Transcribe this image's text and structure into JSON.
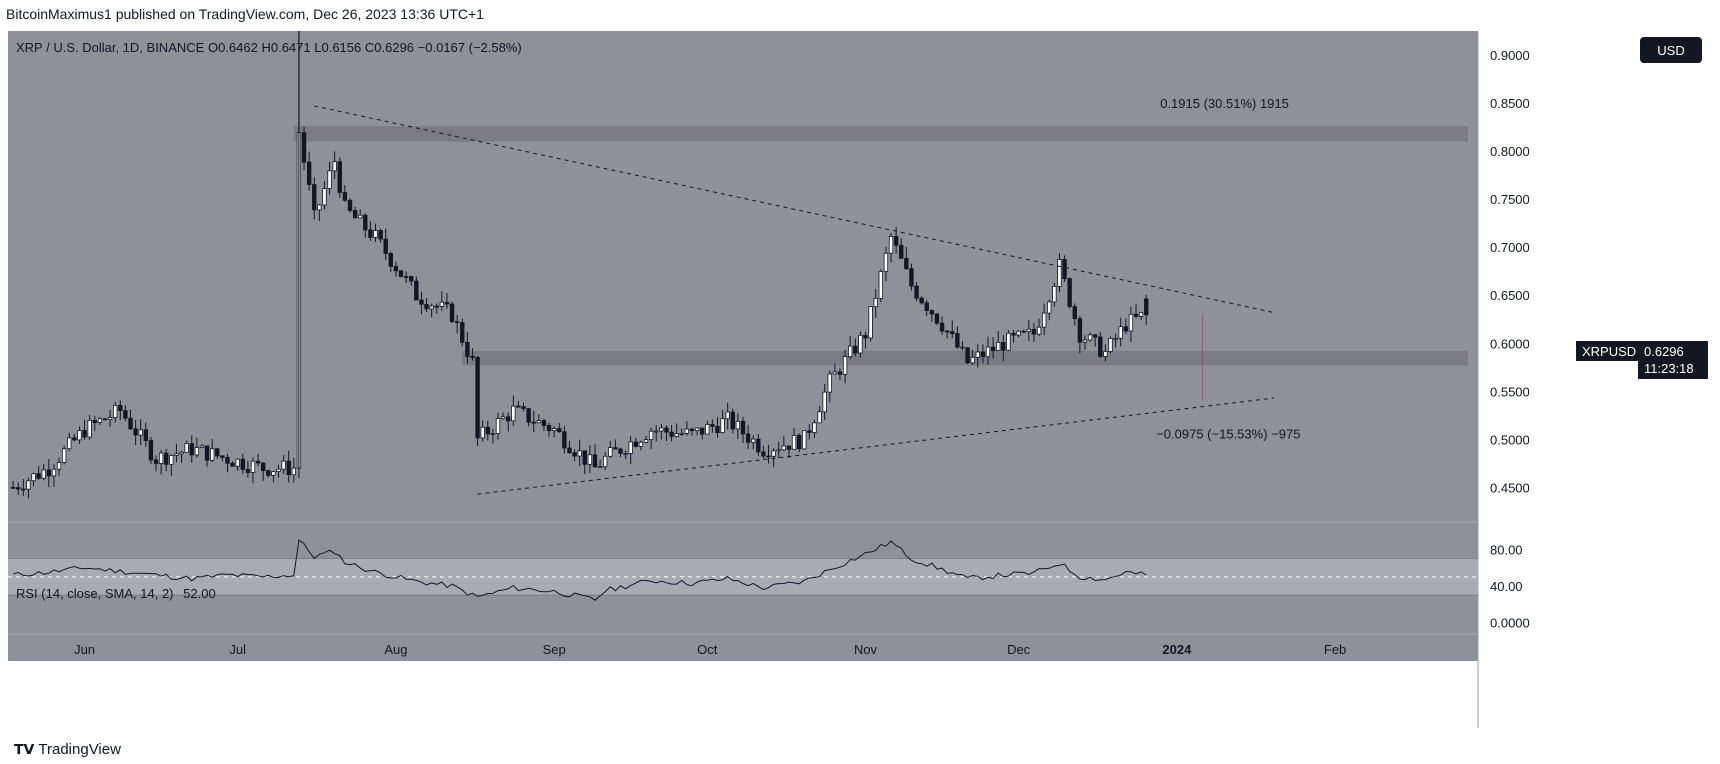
{
  "header": {
    "published": "BitcoinMaximus1 published on TradingView.com, Dec 26, 2023 13:36 UTC+1"
  },
  "legend": {
    "symbol": "XRP / U.S. Dollar, 1D, BINANCE",
    "o_label": "O",
    "o_value": "0.6462",
    "h_label": "H",
    "h_value": "0.6471",
    "l_label": "L",
    "l_value": "0.6156",
    "c_label": "C",
    "c_value": "0.6296",
    "change": "−0.0167 (−2.58%)"
  },
  "currency_button": "USD",
  "price_tag": {
    "symbol": "XRPUSD",
    "price": "0.6296",
    "countdown": "11:23:18"
  },
  "measure_labels": {
    "upper": "0.1915 (30.51%) 1915",
    "lower": "−0.0975 (−15.53%) −975"
  },
  "rsi_legend": {
    "label": "RSI (14, close, SMA, 14, 2)",
    "value": "52.00"
  },
  "footer": {
    "brand": "TradingView"
  },
  "colors": {
    "pane_bg": "#8f9199",
    "zone": "#74767e",
    "rsi_band": "#a9abb2",
    "candle_body": "#ffffff",
    "candle_wick": "#131722",
    "price_tag_bg": "#131722"
  },
  "chart_data": {
    "type": "candlestick",
    "title": "XRP / U.S. Dollar, 1D, BINANCE",
    "x_tick_labels": [
      "Jun",
      "Jul",
      "Aug",
      "Sep",
      "Oct",
      "Nov",
      "Dec",
      "2024",
      "Feb"
    ],
    "y_tick_labels": [
      "0.9000",
      "0.8500",
      "0.8000",
      "0.7500",
      "0.7000",
      "0.6500",
      "0.6000",
      "0.5500",
      "0.5000",
      "0.4500"
    ],
    "ylim": [
      0.415,
      0.925
    ],
    "x_range": [
      "2023-05-17",
      "2024-02-29"
    ],
    "close_series": {
      "dates": [
        "2023-05-18",
        "2023-05-25",
        "2023-06-01",
        "2023-06-08",
        "2023-06-15",
        "2023-06-22",
        "2023-06-29",
        "2023-07-06",
        "2023-07-12",
        "2023-07-13",
        "2023-07-16",
        "2023-07-20",
        "2023-07-22",
        "2023-07-28",
        "2023-08-05",
        "2023-08-12",
        "2023-08-16",
        "2023-08-17",
        "2023-08-24",
        "2023-09-01",
        "2023-09-09",
        "2023-09-11",
        "2023-09-20",
        "2023-09-28",
        "2023-10-05",
        "2023-10-12",
        "2023-10-20",
        "2023-10-25",
        "2023-11-01",
        "2023-11-06",
        "2023-11-10",
        "2023-11-16",
        "2023-11-21",
        "2023-11-28",
        "2023-12-04",
        "2023-12-09",
        "2023-12-13",
        "2023-12-18",
        "2023-12-22",
        "2023-12-26"
      ],
      "close": [
        0.45,
        0.47,
        0.51,
        0.53,
        0.48,
        0.49,
        0.48,
        0.47,
        0.47,
        0.82,
        0.73,
        0.79,
        0.74,
        0.71,
        0.65,
        0.63,
        0.58,
        0.5,
        0.53,
        0.51,
        0.47,
        0.48,
        0.51,
        0.505,
        0.52,
        0.49,
        0.5,
        0.56,
        0.61,
        0.71,
        0.66,
        0.62,
        0.58,
        0.6,
        0.61,
        0.68,
        0.61,
        0.59,
        0.62,
        0.6296
      ]
    },
    "annotations": {
      "resistance_zone": [
        0.81,
        0.826
      ],
      "support_zone": [
        0.577,
        0.592
      ],
      "descending_trendline": [
        [
          "2023-07-16",
          0.847
        ],
        [
          "2024-01-20",
          0.632
        ]
      ],
      "ascending_trendline": [
        [
          "2023-08-17",
          0.443
        ],
        [
          "2024-01-20",
          0.543
        ]
      ],
      "measure_up": "0.1915 (30.51%) 1915",
      "measure_down": "−0.0975 (−15.53%) −975"
    },
    "rsi": {
      "label": "RSI (14, close, SMA, 14, 2)",
      "last": 52.0,
      "y_tick_labels": [
        "80.00",
        "40.00",
        "0.0000"
      ],
      "band": [
        30,
        70
      ],
      "values": [
        52,
        55,
        60,
        56,
        52,
        48,
        52,
        50,
        52,
        90,
        72,
        78,
        66,
        55,
        45,
        40,
        30,
        28,
        38,
        34,
        25,
        35,
        46,
        43,
        48,
        38,
        45,
        58,
        75,
        88,
        70,
        58,
        48,
        52,
        54,
        65,
        50,
        47,
        55,
        52
      ]
    }
  }
}
